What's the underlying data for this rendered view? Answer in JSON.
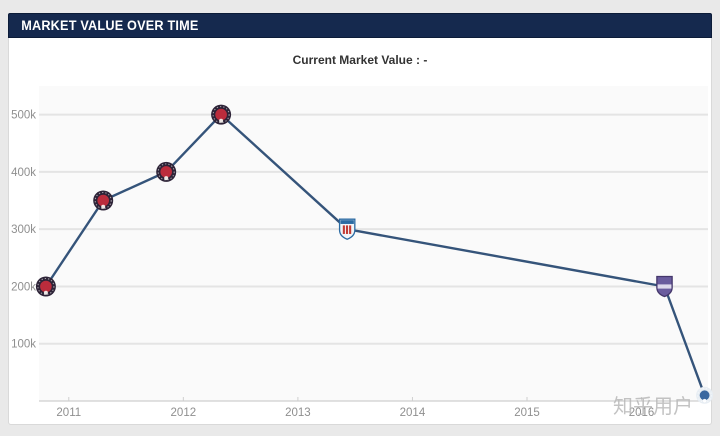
{
  "header": {
    "title": "MARKET VALUE OVER TIME"
  },
  "watermark": {
    "text": "知乎用户"
  },
  "colors": {
    "header_bg": "#15294e",
    "page_bg": "#e9e9e9",
    "card_bg": "#ffffff",
    "plot_bg": "#fafafa",
    "grid": "#e4e4e4",
    "axis": "#cfcfcf",
    "tick_label": "#8f8f8f",
    "line": "#35547a",
    "watermark": "#b9b9b9"
  },
  "chart_data": {
    "type": "line",
    "title": "Current Market Value : -",
    "xlabel": "",
    "ylabel": "",
    "grid": true,
    "legend": "none",
    "line_color": "#35547a",
    "x_axis": {
      "ticks": [
        "2011",
        "2012",
        "2013",
        "2014",
        "2015",
        "2016"
      ],
      "tick_years": [
        2011,
        2012,
        2013,
        2014,
        2015,
        2016
      ],
      "range": [
        2010.74,
        2016.58
      ]
    },
    "y_axis": {
      "ticks": [
        "100k",
        "200k",
        "300k",
        "400k",
        "500k"
      ],
      "tick_values": [
        100000,
        200000,
        300000,
        400000,
        500000
      ],
      "range": [
        0,
        550000
      ]
    },
    "points": [
      {
        "year": 2010.8,
        "value": 200000,
        "display": "200k",
        "icon": "red-round-crest"
      },
      {
        "year": 2011.3,
        "value": 350000,
        "display": "350k",
        "icon": "red-round-crest"
      },
      {
        "year": 2011.85,
        "value": 400000,
        "display": "400k",
        "icon": "red-round-crest"
      },
      {
        "year": 2012.33,
        "value": 500000,
        "display": "500k",
        "icon": "red-round-crest"
      },
      {
        "year": 2013.43,
        "value": 300000,
        "display": "300k",
        "icon": "blue-shield-crest"
      },
      {
        "year": 2016.2,
        "value": 200000,
        "display": "200k",
        "icon": "purple-shield-crest"
      },
      {
        "year": 2016.55,
        "value": 10000,
        "display": "10k",
        "icon": "blue-round-crest",
        "size": 8.5
      }
    ],
    "icons": {
      "red-round-crest": {
        "shape": "round",
        "base": "#2d2337",
        "inner": "#bb2c3c",
        "accent": "#f4f1ec"
      },
      "blue-shield-crest": {
        "shape": "shield",
        "base": "#f2f5f8",
        "border": "#2c6ba3",
        "chief": "#2c6ba3",
        "stripes": "#c23b34"
      },
      "purple-shield-crest": {
        "shape": "shield",
        "base": "#6a5c9e",
        "border": "#44376b",
        "band": "#ddd8ec"
      },
      "blue-round-crest": {
        "shape": "round",
        "base": "#e7edf3",
        "inner": "#3a68a0",
        "accent": "#ffffff"
      }
    }
  }
}
